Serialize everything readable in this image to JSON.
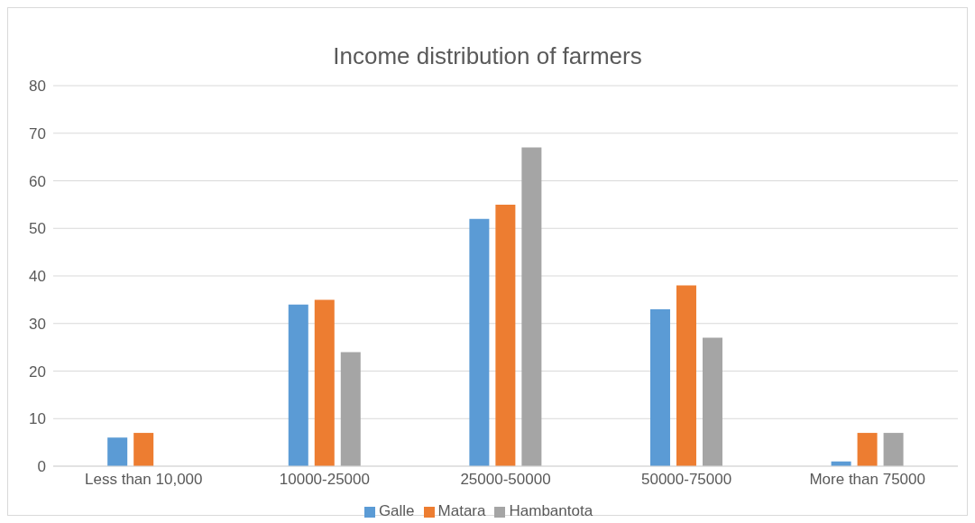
{
  "chart_data": {
    "type": "bar",
    "title": "Income distribution of farmers",
    "categories": [
      "Less than 10,000",
      "10000-25000",
      "25000-50000",
      "50000-75000",
      "More than 75000"
    ],
    "series": [
      {
        "name": "Galle",
        "color": "#5b9bd5",
        "values": [
          6,
          34,
          52,
          33,
          1
        ]
      },
      {
        "name": "Matara",
        "color": "#ed7d31",
        "values": [
          7,
          35,
          55,
          38,
          7
        ]
      },
      {
        "name": "Hambantota",
        "color": "#a5a5a5",
        "values": [
          0,
          24,
          67,
          27,
          7
        ]
      }
    ],
    "ylim": [
      0,
      80
    ],
    "yticks": [
      0,
      10,
      20,
      30,
      40,
      50,
      60,
      70,
      80
    ],
    "grid": "y",
    "legend": "bottom"
  }
}
